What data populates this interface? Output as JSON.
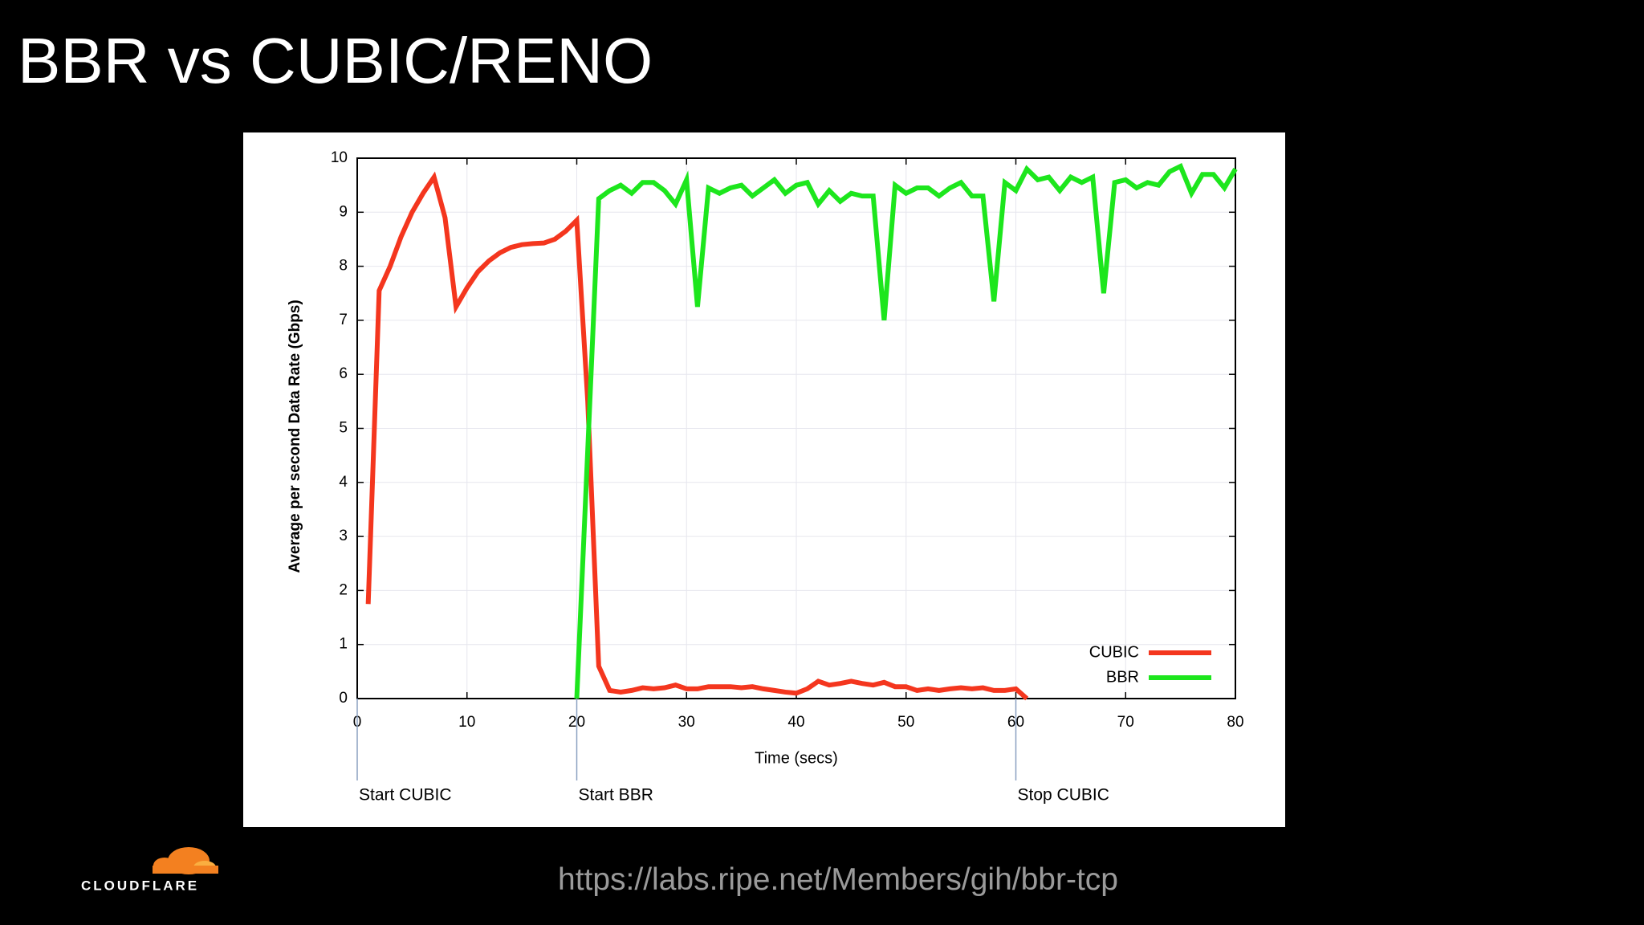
{
  "slide": {
    "title": "BBR vs CUBIC/RENO",
    "url": "https://labs.ripe.net/Members/gih/bbr-tcp",
    "logo": "CLOUDFLARE"
  },
  "chart_data": {
    "type": "line",
    "x_label": "Time (secs)",
    "y_label": "Average per second Data Rate (Gbps)",
    "xlim": [
      0,
      80
    ],
    "ylim": [
      0,
      10
    ],
    "xticks": [
      0,
      10,
      20,
      30,
      40,
      50,
      60,
      70,
      80
    ],
    "yticks": [
      0,
      1,
      2,
      3,
      4,
      5,
      6,
      7,
      8,
      9,
      10
    ],
    "grid": true,
    "legend": "lower right",
    "series": [
      {
        "name": "CUBIC",
        "color": "#f4361e",
        "x": [
          1,
          2,
          3,
          4,
          5,
          6,
          7,
          8,
          9,
          10,
          11,
          12,
          13,
          14,
          15,
          16,
          17,
          18,
          19,
          20,
          21,
          22,
          23,
          24,
          25,
          26,
          27,
          28,
          29,
          30,
          31,
          32,
          33,
          34,
          35,
          36,
          37,
          38,
          39,
          40,
          41,
          42,
          43,
          44,
          45,
          46,
          47,
          48,
          49,
          50,
          51,
          52,
          53,
          54,
          55,
          56,
          57,
          58,
          59,
          60,
          61
        ],
        "values": [
          1.75,
          7.55,
          8.0,
          8.55,
          9.0,
          9.35,
          9.65,
          8.9,
          7.25,
          7.6,
          7.9,
          8.1,
          8.25,
          8.35,
          8.4,
          8.42,
          8.43,
          8.5,
          8.65,
          8.85,
          5.5,
          0.6,
          0.15,
          0.12,
          0.15,
          0.2,
          0.18,
          0.2,
          0.25,
          0.18,
          0.18,
          0.22,
          0.22,
          0.22,
          0.2,
          0.22,
          0.18,
          0.15,
          0.12,
          0.1,
          0.18,
          0.32,
          0.25,
          0.28,
          0.32,
          0.28,
          0.25,
          0.3,
          0.22,
          0.22,
          0.15,
          0.18,
          0.15,
          0.18,
          0.2,
          0.18,
          0.2,
          0.15,
          0.15,
          0.18,
          0
        ]
      },
      {
        "name": "BBR",
        "color": "#1de61d",
        "x": [
          20,
          21,
          22,
          23,
          24,
          25,
          26,
          27,
          28,
          29,
          30,
          31,
          32,
          33,
          34,
          35,
          36,
          37,
          38,
          39,
          40,
          41,
          42,
          43,
          44,
          45,
          46,
          47,
          48,
          49,
          50,
          51,
          52,
          53,
          54,
          55,
          56,
          57,
          58,
          59,
          60,
          61,
          62,
          63,
          64,
          65,
          66,
          67,
          68,
          69,
          70,
          71,
          72,
          73,
          74,
          75,
          76,
          77,
          78,
          79,
          80
        ],
        "values": [
          0,
          4.6,
          9.25,
          9.4,
          9.5,
          9.35,
          9.55,
          9.55,
          9.4,
          9.15,
          9.6,
          7.25,
          9.45,
          9.35,
          9.45,
          9.5,
          9.3,
          9.45,
          9.6,
          9.35,
          9.5,
          9.55,
          9.15,
          9.4,
          9.2,
          9.35,
          9.3,
          9.3,
          7.0,
          9.5,
          9.35,
          9.45,
          9.45,
          9.3,
          9.45,
          9.55,
          9.3,
          9.3,
          7.35,
          9.55,
          9.4,
          9.8,
          9.6,
          9.65,
          9.4,
          9.65,
          9.55,
          9.65,
          7.5,
          9.55,
          9.6,
          9.45,
          9.55,
          9.5,
          9.75,
          9.85,
          9.35,
          9.7,
          9.7,
          9.45,
          9.8
        ]
      }
    ],
    "annotations": [
      {
        "x": 0,
        "label": "Start CUBIC"
      },
      {
        "x": 20,
        "label": "Start BBR"
      },
      {
        "x": 60,
        "label": "Stop CUBIC"
      }
    ]
  }
}
